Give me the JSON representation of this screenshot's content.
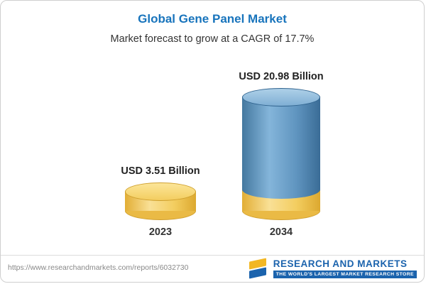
{
  "header": {
    "title": "Global Gene Panel Market",
    "subtitle": "Market forecast to grow at a CAGR of 17.7%"
  },
  "chart_data": {
    "type": "bar",
    "title": "Global Gene Panel Market",
    "subtitle": "Market forecast to grow at a CAGR of 17.7%",
    "categories": [
      "2023",
      "2034"
    ],
    "values": [
      3.51,
      20.98
    ],
    "value_labels": [
      "USD 3.51 Billion",
      "USD 20.98 Billion"
    ],
    "unit": "USD Billion",
    "cagr": "17.7%",
    "ylim": [
      0,
      22
    ],
    "grid": false,
    "legend": "none",
    "bar_colors": [
      "#f2cb5e",
      "#5b93c0"
    ],
    "base_color": "#f2cb5e"
  },
  "footer": {
    "url": "https://www.researchandmarkets.com/reports/6032730",
    "brand": "RESEARCH AND MARKETS",
    "tagline": "THE WORLD'S LARGEST MARKET RESEARCH STORE"
  }
}
